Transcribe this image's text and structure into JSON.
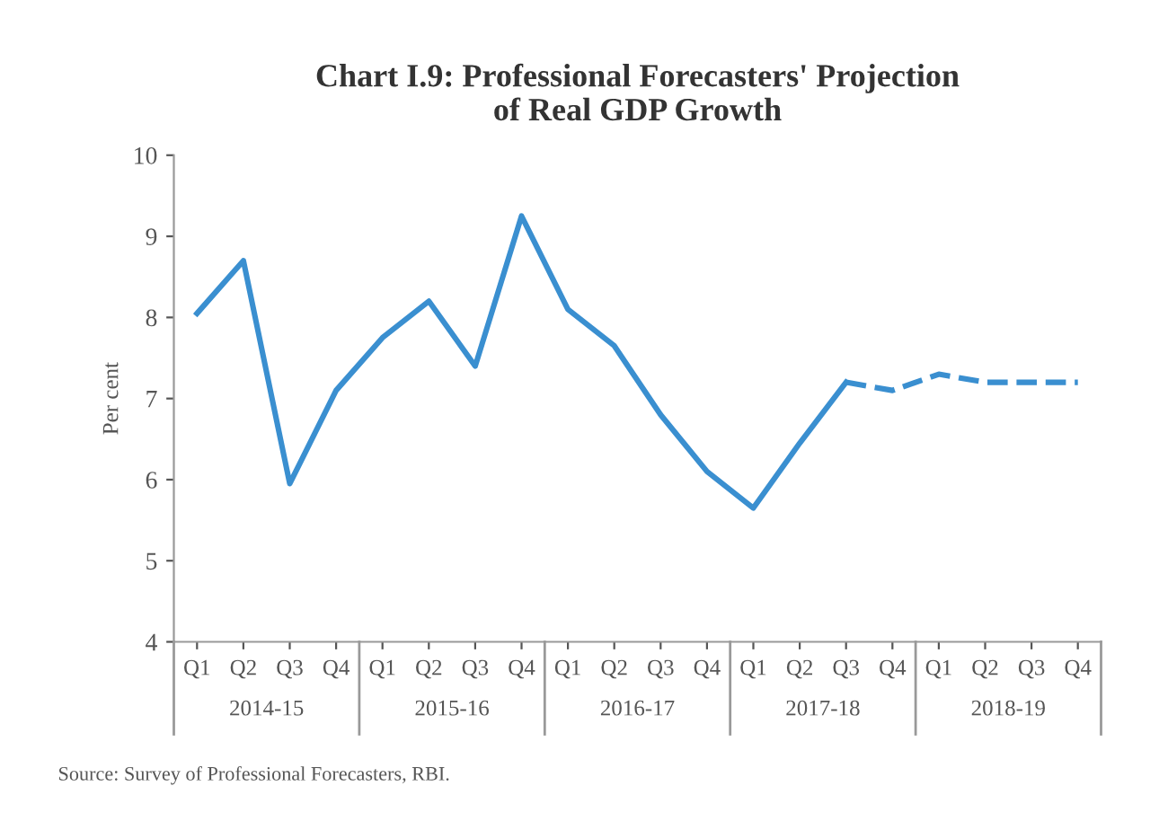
{
  "chart_data": {
    "type": "line",
    "title": "Chart I.9: Professional Forecasters' Projection\nof Real GDP Growth",
    "ylabel": "Per cent",
    "categories": [
      "Q1",
      "Q2",
      "Q3",
      "Q4",
      "Q1",
      "Q2",
      "Q3",
      "Q4",
      "Q1",
      "Q2",
      "Q3",
      "Q4",
      "Q1",
      "Q2",
      "Q3",
      "Q4",
      "Q1",
      "Q2",
      "Q3",
      "Q4"
    ],
    "series": [
      {
        "color": "#3a8fd0",
        "line_style": "solid",
        "values": [
          8.05,
          8.7,
          5.95,
          7.1,
          7.75,
          8.2,
          7.4,
          9.25,
          8.1,
          7.65,
          6.8,
          6.1,
          5.65,
          6.45,
          7.2,
          null,
          null,
          null,
          null,
          null
        ]
      },
      {
        "color": "#3a8fd0",
        "line_style": "dashed",
        "values": [
          null,
          null,
          null,
          null,
          null,
          null,
          null,
          null,
          null,
          null,
          null,
          null,
          null,
          null,
          7.2,
          7.1,
          7.3,
          7.2,
          7.2,
          7.2
        ]
      }
    ],
    "ylim": [
      4,
      10
    ],
    "yticks": [
      4,
      5,
      6,
      7,
      8,
      9,
      10
    ],
    "grid": false,
    "legend": false,
    "marker": "none",
    "annotations": [
      "2014-15",
      "2015-16",
      "2016-17",
      "2017-18",
      "2018-19",
      "Source: Survey of Professional Forecasters, RBI."
    ]
  }
}
